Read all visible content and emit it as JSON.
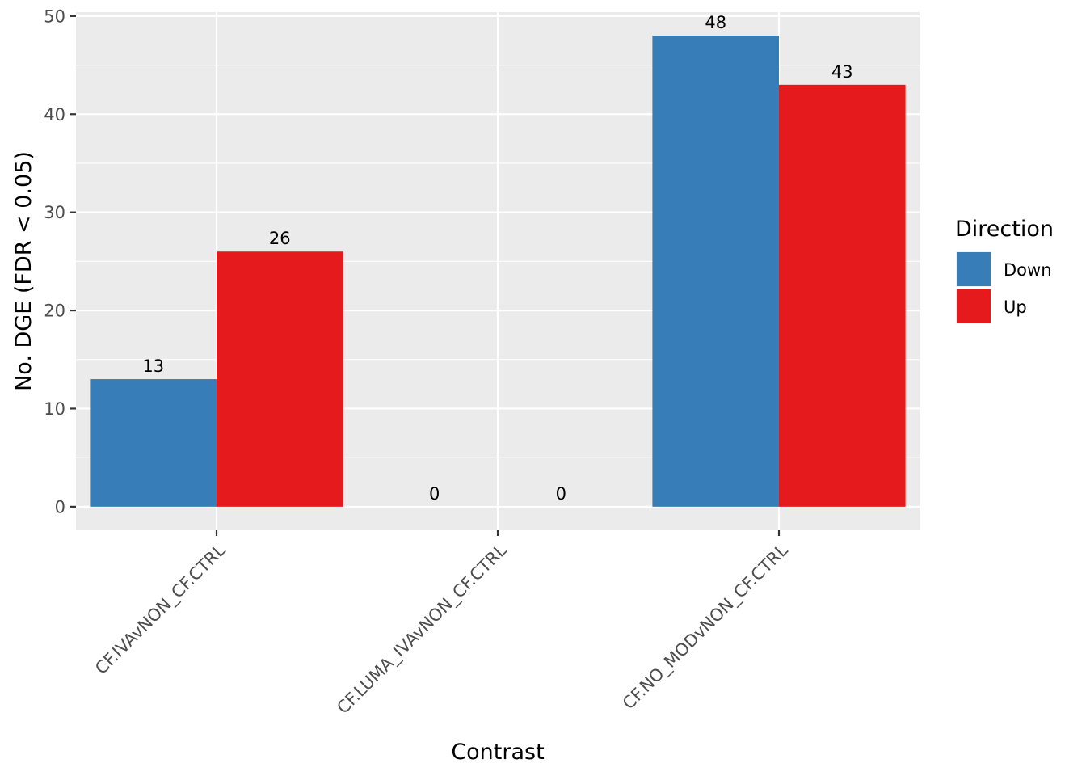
{
  "chart_data": {
    "type": "bar",
    "xlabel": "Contrast",
    "ylabel": "No. DGE (FDR < 0.05)",
    "categories": [
      "CF.IVAvNON_CF.CTRL",
      "CF.LUMA_IVAvNON_CF.CTRL",
      "CF.NO_MODvNON_CF.CTRL"
    ],
    "series": [
      {
        "name": "Down",
        "values": [
          13,
          0,
          48
        ],
        "color": "#377eb8"
      },
      {
        "name": "Up",
        "values": [
          26,
          0,
          43
        ],
        "color": "#e41a1c"
      }
    ],
    "ylim": [
      -2.4,
      50.4
    ],
    "yticks": [
      0,
      10,
      20,
      30,
      40,
      50
    ],
    "grid": true,
    "legend": {
      "title": "Direction",
      "position": "right"
    },
    "panel_background": "#ebebeb"
  }
}
